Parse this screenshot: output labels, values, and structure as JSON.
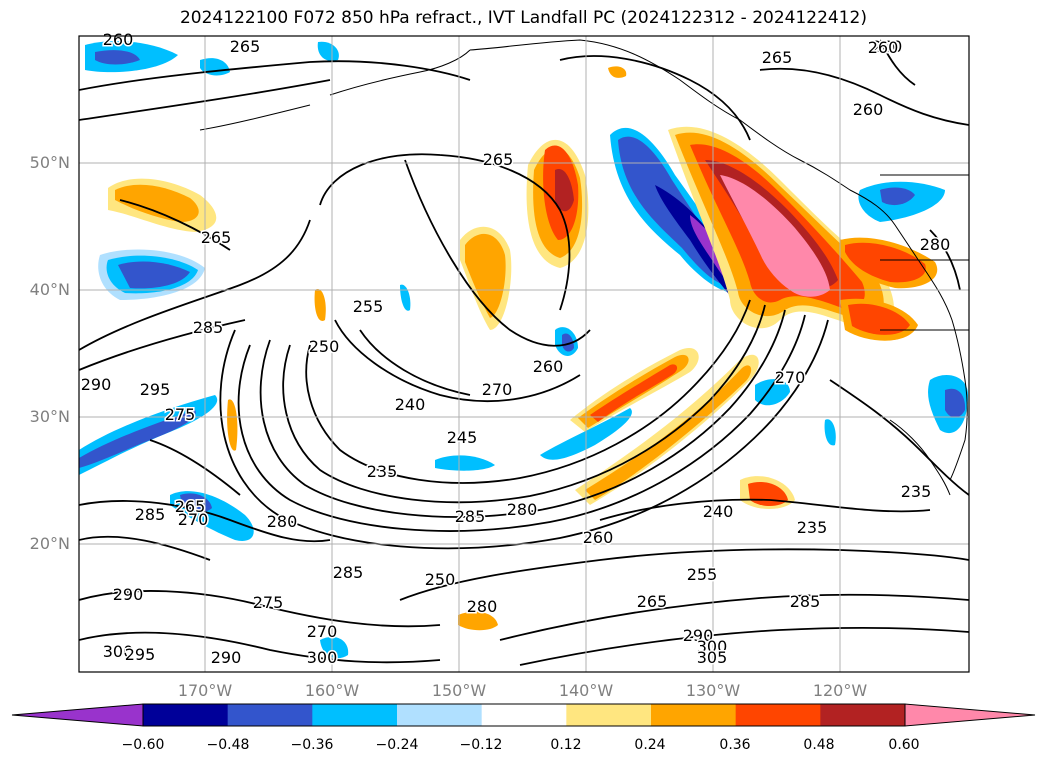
{
  "title": "2024122100 F072 850 hPa refract., IVT Landfall PC (2024122312 - 2024122412)",
  "lat_labels": [
    "50°N",
    "40°N",
    "30°N",
    "20°N"
  ],
  "lon_labels": [
    "170°W",
    "160°W",
    "150°W",
    "140°W",
    "130°W",
    "120°W"
  ],
  "colorbar": {
    "colors": [
      "#9933cc",
      "#000099",
      "#3355cc",
      "#00bfff",
      "#b0e0ff",
      "#ffffff",
      "#ffe680",
      "#ffa500",
      "#ff4500",
      "#b22222",
      "#ff88aa"
    ],
    "tick_labels": [
      "−0.60",
      "−0.48",
      "−0.36",
      "−0.24",
      "−0.12",
      "0.12",
      "0.24",
      "0.36",
      "0.48",
      "0.60"
    ]
  },
  "contour_labels": [
    "260",
    "265",
    "265",
    "260",
    "265",
    "265",
    "260",
    "285",
    "255",
    "250",
    "290",
    "295",
    "240",
    "270",
    "260",
    "275",
    "245",
    "235",
    "265",
    "270",
    "280",
    "285",
    "280",
    "260",
    "270",
    "235",
    "240",
    "235",
    "285",
    "290",
    "285",
    "275",
    "250",
    "255",
    "265",
    "280",
    "285",
    "270",
    "290",
    "300",
    "305",
    "300",
    "290",
    "300",
    "295",
    "260",
    "280"
  ]
}
